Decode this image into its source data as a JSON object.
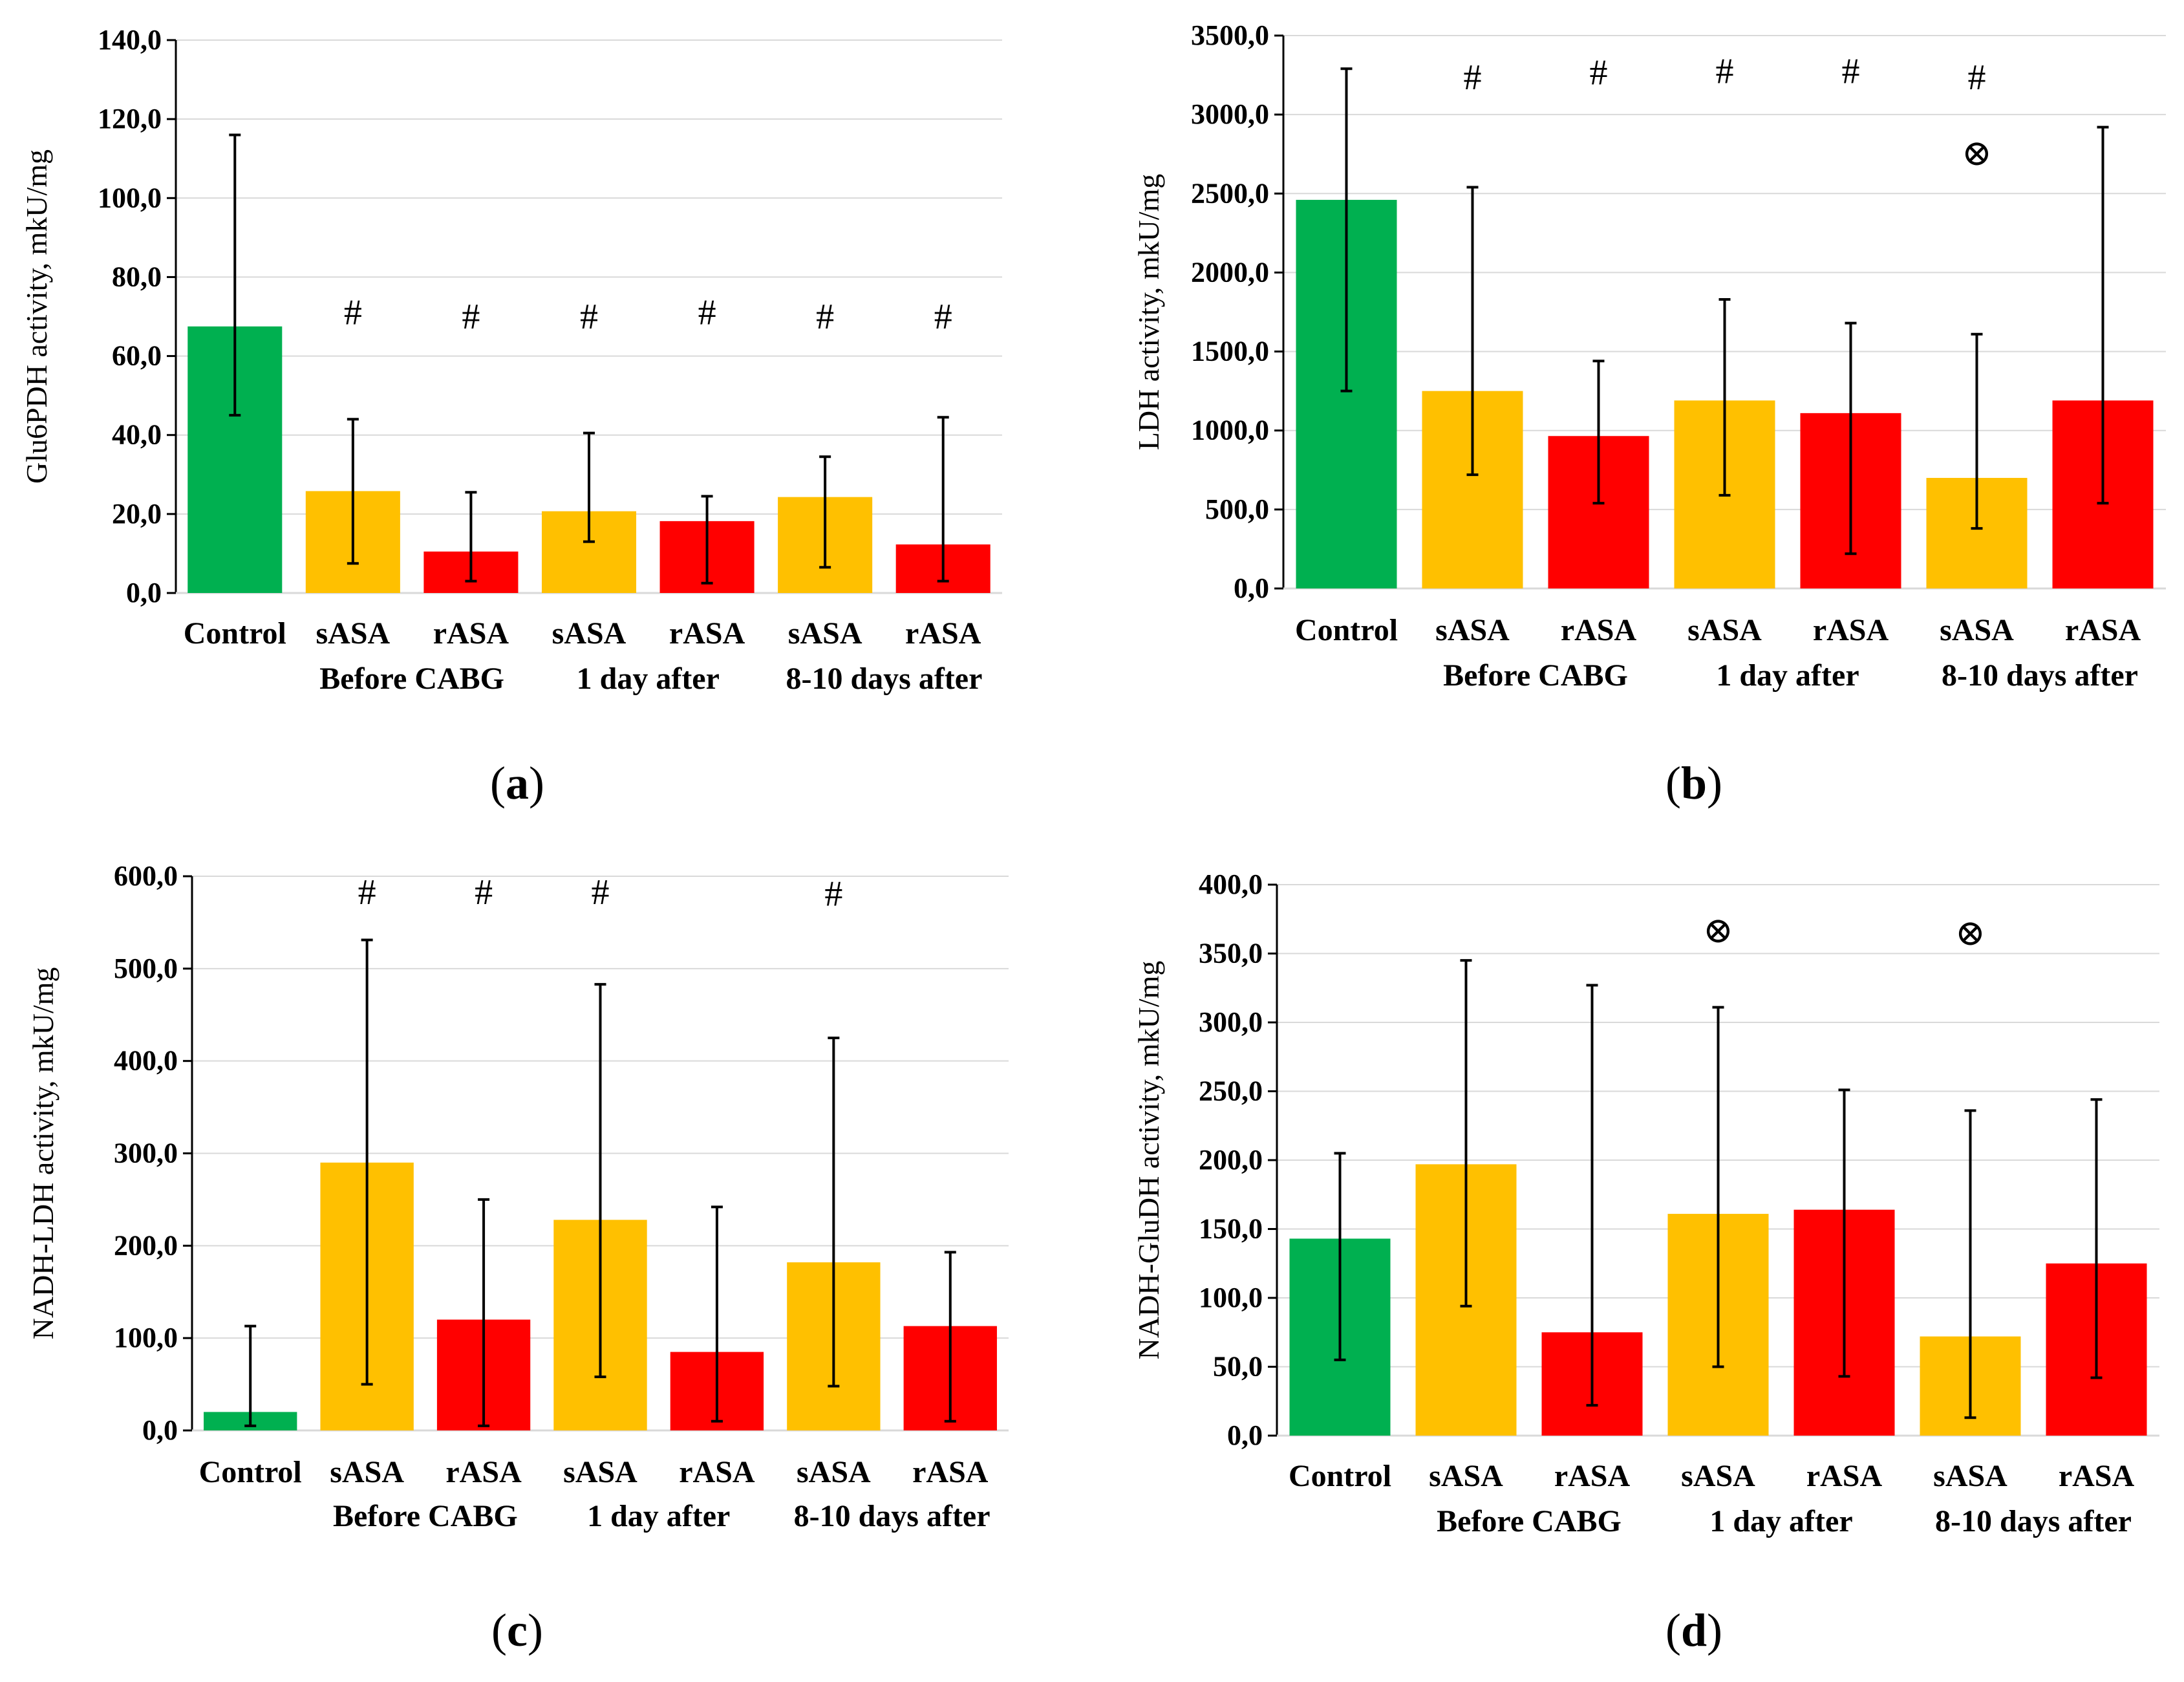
{
  "colors": {
    "control": "#00b050",
    "sASA": "#ffc000",
    "rASA": "#ff0000",
    "grid": "#d9d9d9",
    "axis": "#000000"
  },
  "chart_data": [
    {
      "id": "a",
      "type": "bar",
      "caption": "a",
      "ylabel": "Glu6PDH activity, mkU/mg",
      "ylim": [
        0,
        140
      ],
      "ystep": 20,
      "yticks": [
        "0,0",
        "20,0",
        "40,0",
        "60,0",
        "80,0",
        "100,0",
        "120,0",
        "140,0"
      ],
      "categories": [
        "Control",
        "sASA",
        "rASA",
        "sASA",
        "rASA",
        "sASA",
        "rASA"
      ],
      "groups": [
        {
          "label": "Before CABG",
          "from": 1,
          "to": 2
        },
        {
          "label": "1 day after",
          "from": 3,
          "to": 4
        },
        {
          "label": "8-10 days after",
          "from": 5,
          "to": 6
        }
      ],
      "values": [
        67.5,
        25.8,
        10.5,
        20.7,
        18.2,
        24.3,
        12.3
      ],
      "err_low": [
        45,
        7.5,
        3,
        13,
        2.5,
        6.5,
        3
      ],
      "err_high": [
        116,
        44,
        25.5,
        40.5,
        24.5,
        34.5,
        44.5
      ],
      "markers": [
        "",
        "#",
        "#",
        "#",
        "#",
        "#",
        "#"
      ],
      "marker_at": [
        null,
        68,
        67,
        67,
        68,
        67,
        67
      ]
    },
    {
      "id": "b",
      "type": "bar",
      "caption": "b",
      "ylabel": "LDH activity, mkU/mg",
      "ylim": [
        0,
        3500
      ],
      "ystep": 500,
      "yticks": [
        "0,0",
        "500,0",
        "1000,0",
        "1500,0",
        "2000,0",
        "2500,0",
        "3000,0",
        "3500,0"
      ],
      "categories": [
        "Control",
        "sASA",
        "rASA",
        "sASA",
        "rASA",
        "sASA",
        "rASA"
      ],
      "groups": [
        {
          "label": "Before CABG",
          "from": 1,
          "to": 2
        },
        {
          "label": "1 day after",
          "from": 3,
          "to": 4
        },
        {
          "label": "8-10 days after",
          "from": 5,
          "to": 6
        }
      ],
      "values": [
        2460,
        1250,
        965,
        1190,
        1110,
        700,
        1190
      ],
      "err_low": [
        1250,
        720,
        540,
        590,
        220,
        380,
        540
      ],
      "err_high": [
        3290,
        2540,
        1440,
        1830,
        1680,
        1610,
        2920
      ],
      "markers": [
        "",
        "#",
        "#",
        "#",
        "#",
        "#",
        ""
      ],
      "marker_at": [
        null,
        3160,
        3190,
        3200,
        3200,
        3160,
        null
      ],
      "markers2": [
        "",
        "",
        "",
        "",
        "",
        "⊗",
        ""
      ],
      "marker2_at": [
        null,
        null,
        null,
        null,
        null,
        2680,
        null
      ]
    },
    {
      "id": "c",
      "type": "bar",
      "caption": "c",
      "ylabel": "NADH-LDH activity, mkU/mg",
      "ylim": [
        0,
        600
      ],
      "ystep": 100,
      "yticks": [
        "0,0",
        "100,0",
        "200,0",
        "300,0",
        "400,0",
        "500,0",
        "600,0"
      ],
      "categories": [
        "Control",
        "sASA",
        "rASA",
        "sASA",
        "rASA",
        "sASA",
        "rASA"
      ],
      "groups": [
        {
          "label": "Before CABG",
          "from": 1,
          "to": 2
        },
        {
          "label": "1 day after",
          "from": 3,
          "to": 4
        },
        {
          "label": "8-10 days after",
          "from": 5,
          "to": 6
        }
      ],
      "values": [
        20,
        290,
        120,
        228,
        85,
        182,
        113
      ],
      "err_low": [
        5,
        50,
        5,
        58,
        10,
        48,
        10
      ],
      "err_high": [
        113,
        531,
        250,
        483,
        242,
        425,
        193
      ],
      "markers": [
        "",
        "#",
        "#",
        "#",
        "",
        "#",
        ""
      ],
      "marker_at": [
        null,
        570,
        570,
        570,
        null,
        568,
        null
      ]
    },
    {
      "id": "d",
      "type": "bar",
      "caption": "d",
      "ylabel": "NADH-GluDH activity, mkU/mg",
      "ylim": [
        0,
        400
      ],
      "ystep": 50,
      "yticks": [
        "0,0",
        "50,0",
        "100,0",
        "150,0",
        "200,0",
        "250,0",
        "300,0",
        "350,0",
        "400,0"
      ],
      "categories": [
        "Control",
        "sASA",
        "rASA",
        "sASA",
        "rASA",
        "sASA",
        "rASA"
      ],
      "groups": [
        {
          "label": "Before CABG",
          "from": 1,
          "to": 2
        },
        {
          "label": "1 day after",
          "from": 3,
          "to": 4
        },
        {
          "label": "8-10 days after",
          "from": 5,
          "to": 6
        }
      ],
      "values": [
        143,
        197,
        75,
        161,
        164,
        72,
        125
      ],
      "err_low": [
        55,
        94,
        22,
        50,
        43,
        13,
        42
      ],
      "err_high": [
        205,
        345,
        327,
        311,
        251,
        236,
        244
      ],
      "markers": [
        "",
        "",
        "",
        "⊗",
        "",
        "⊗",
        ""
      ],
      "marker_at": [
        null,
        null,
        null,
        358,
        null,
        356,
        null
      ]
    }
  ]
}
